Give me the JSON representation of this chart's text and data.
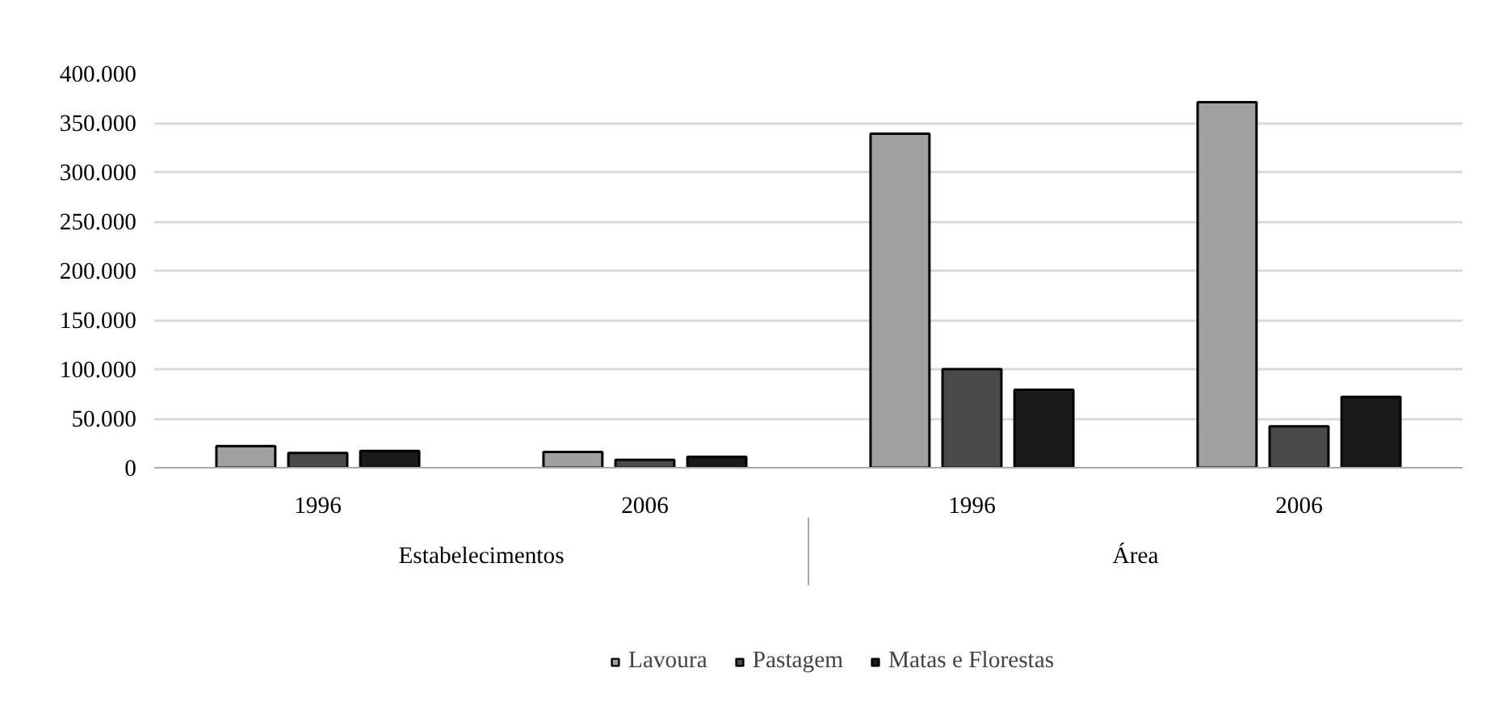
{
  "chart_data": {
    "type": "bar",
    "categories": [
      "1996",
      "2006",
      "1996",
      "2006"
    ],
    "annotations": [
      "Estabelecimentos",
      "Área"
    ],
    "series": [
      {
        "name": "Lavoura",
        "color": "#a0a0a0",
        "values": [
          22000,
          16000,
          339000,
          371000
        ]
      },
      {
        "name": "Pastagem",
        "color": "#4a4a4a",
        "values": [
          15000,
          8000,
          100000,
          42000
        ]
      },
      {
        "name": "Matas e Florestas",
        "color": "#1a1a1a",
        "values": [
          17000,
          11000,
          79000,
          72000
        ]
      }
    ],
    "ylim": [
      0,
      400000
    ],
    "yticks": [
      {
        "value": 0,
        "label": "0"
      },
      {
        "value": 50000,
        "label": "50.000"
      },
      {
        "value": 100000,
        "label": "100.000"
      },
      {
        "value": 150000,
        "label": "150.000"
      },
      {
        "value": 200000,
        "label": "200.000"
      },
      {
        "value": 250000,
        "label": "250.000"
      },
      {
        "value": 300000,
        "label": "300.000"
      },
      {
        "value": 350000,
        "label": "350.000"
      },
      {
        "value": 400000,
        "label": "400.000"
      }
    ],
    "grid": "y",
    "legend": "bottom"
  }
}
